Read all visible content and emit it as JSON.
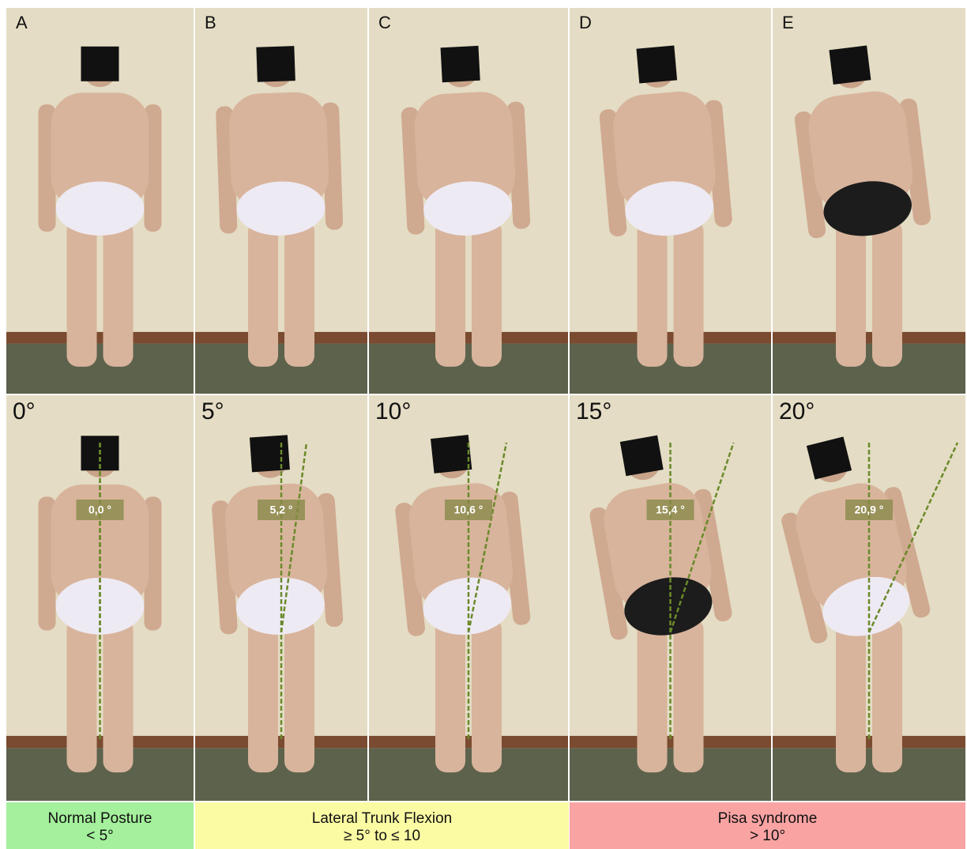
{
  "top_panels": [
    {
      "letter": "A"
    },
    {
      "letter": "B"
    },
    {
      "letter": "C"
    },
    {
      "letter": "D"
    },
    {
      "letter": "E"
    }
  ],
  "bottom_panels": [
    {
      "degree": "0°",
      "measurement": "0,0 °"
    },
    {
      "degree": "5°",
      "measurement": "5,2 °"
    },
    {
      "degree": "10°",
      "measurement": "10,6 °"
    },
    {
      "degree": "15°",
      "measurement": "15,4 °"
    },
    {
      "degree": "20°",
      "measurement": "20,9 °"
    }
  ],
  "categories": [
    {
      "name": "Normal Posture",
      "range": "< 5°"
    },
    {
      "name": "Lateral Trunk Flexion",
      "range": "≥ 5° to ≤ 10"
    },
    {
      "name": "Pisa syndrome",
      "range": "> 10°"
    }
  ]
}
